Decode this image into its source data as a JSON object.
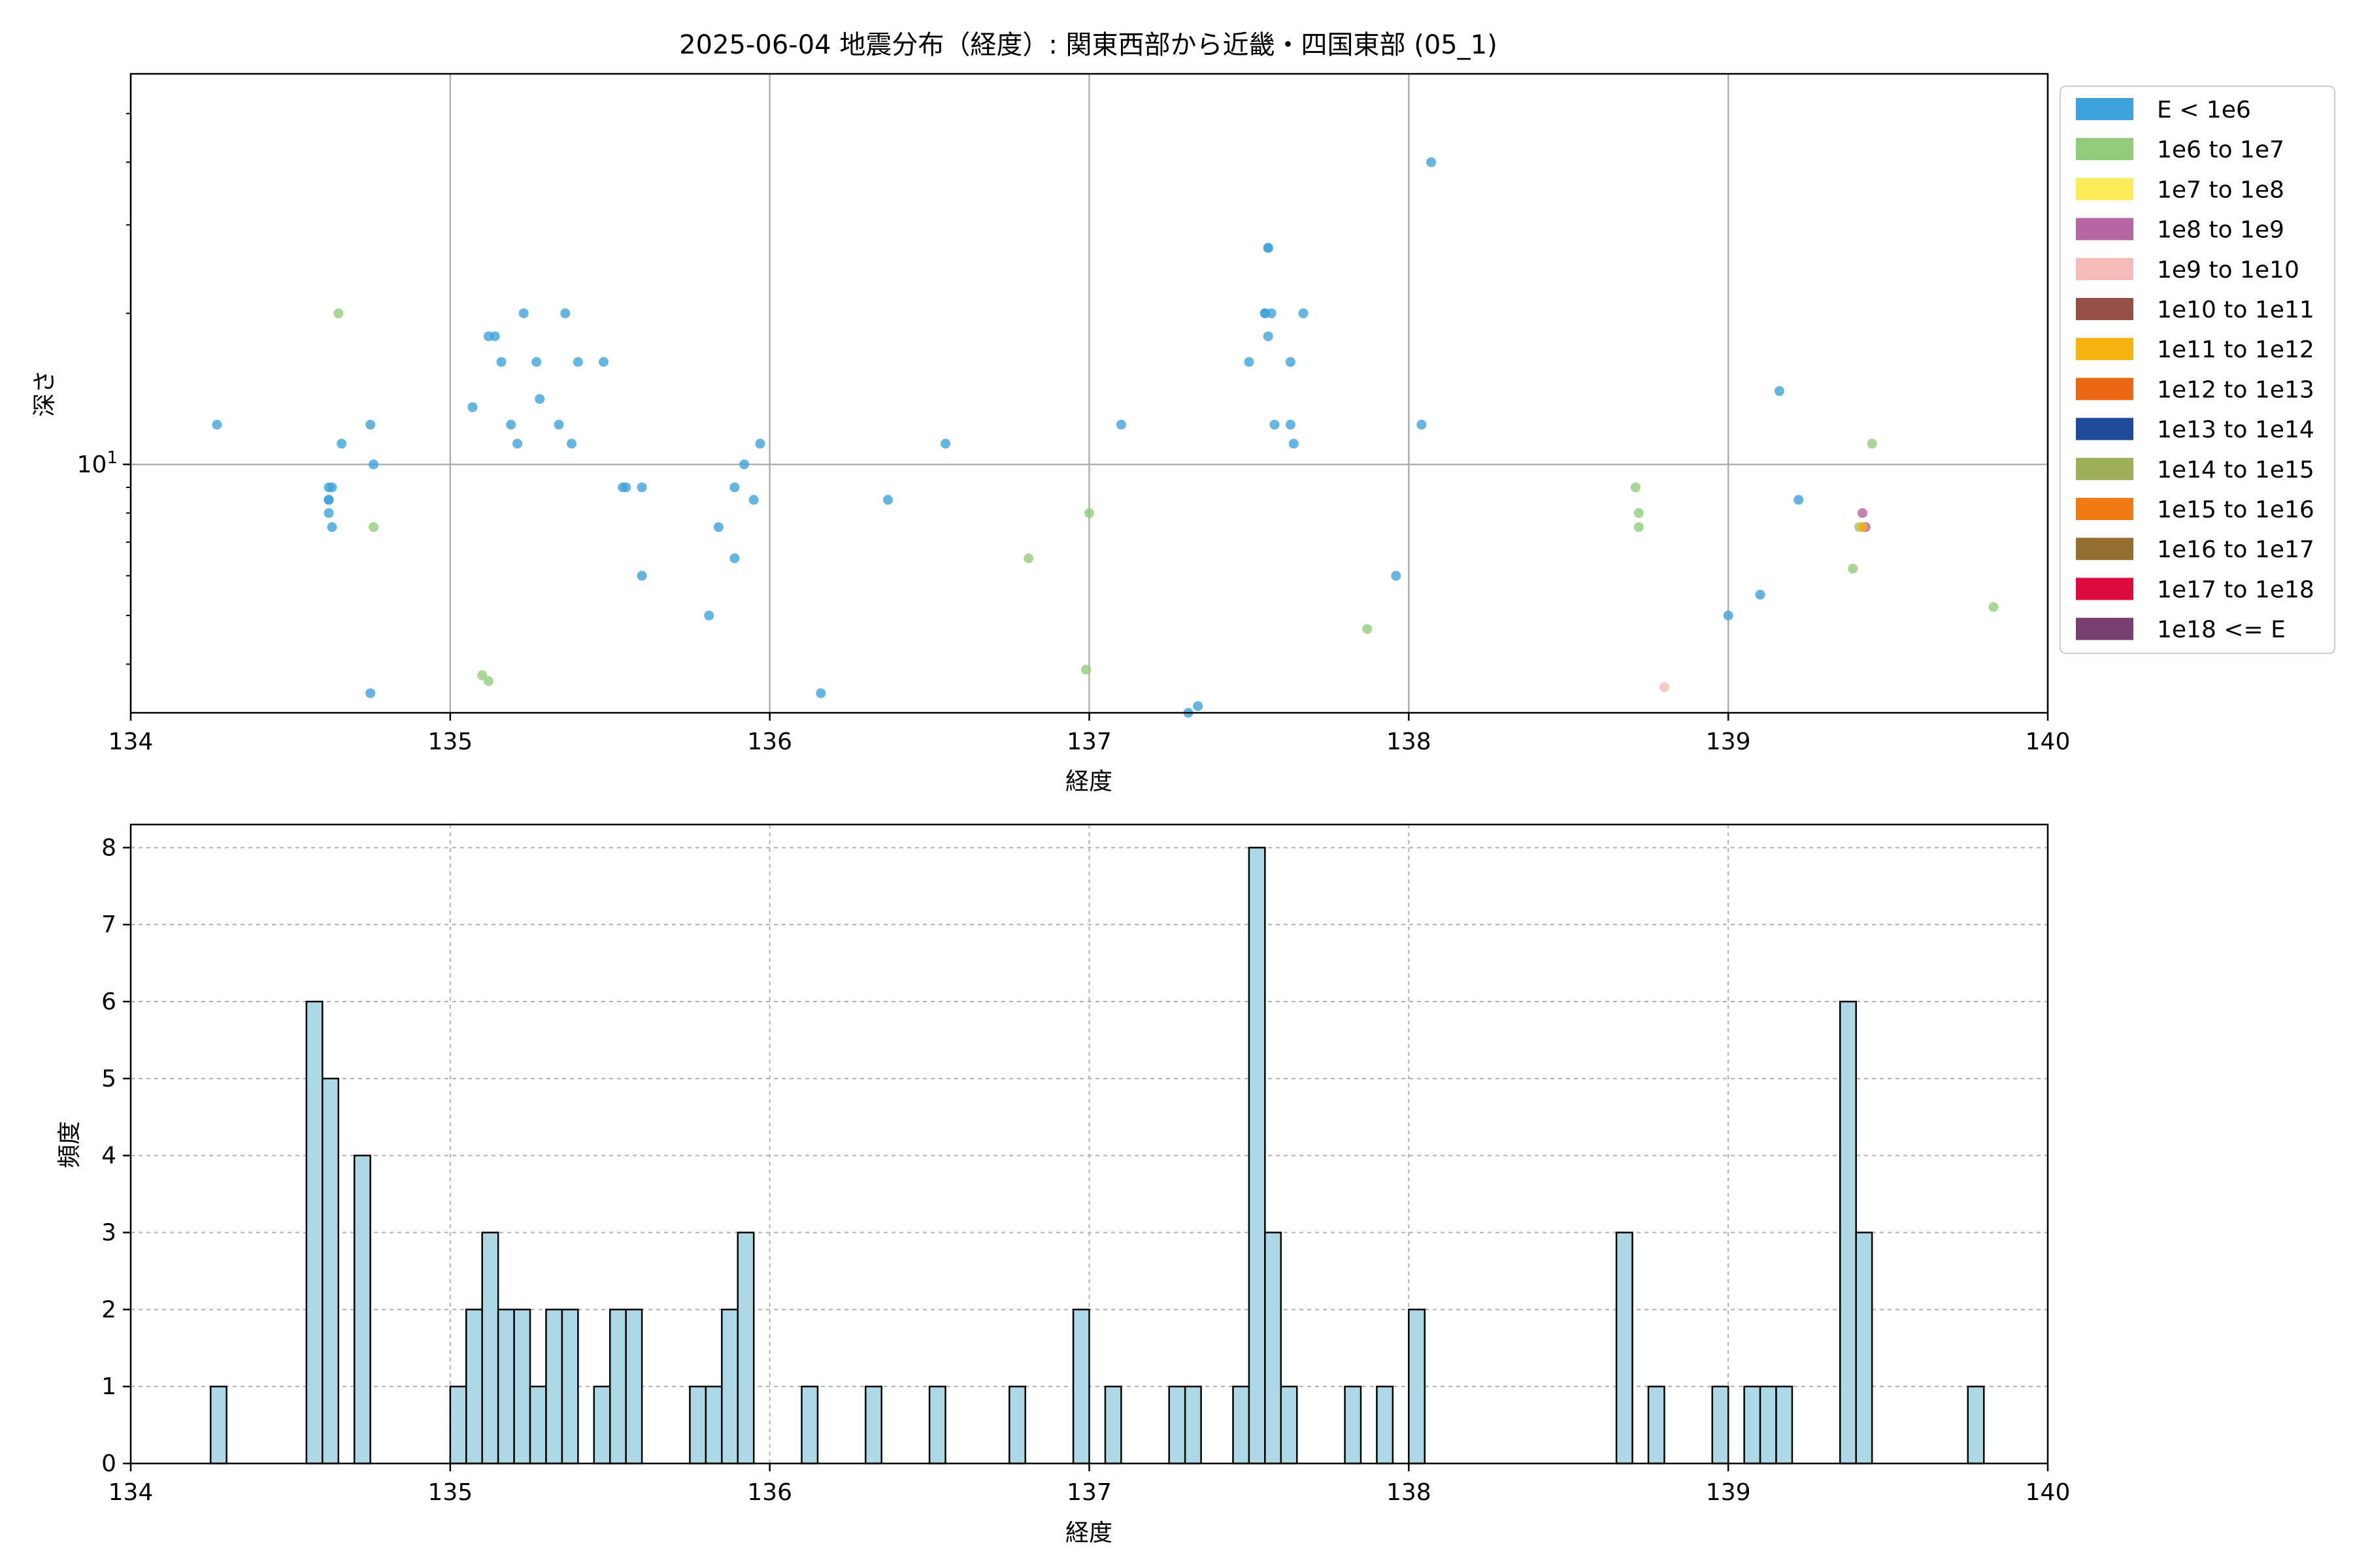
{
  "title": "2025-06-04 地震分布（経度）: 関東西部から近畿・四国東部 (05_1)",
  "scatter": {
    "xlabel": "経度",
    "ylabel": "深さ",
    "xlim": [
      134,
      140
    ],
    "ylim_log": [
      3.2,
      60
    ],
    "yscale": "log",
    "grid": true,
    "xticks": [
      "134",
      "135",
      "136",
      "137",
      "138",
      "139",
      "140"
    ],
    "y_major_tick": {
      "value": 10,
      "base": "10",
      "exp": "1"
    },
    "legend": {
      "placement": "outside-right",
      "entries": [
        {
          "label": "E < 1e6",
          "color": "#3fa3db"
        },
        {
          "label": "1e6 to 1e7",
          "color": "#93cc79"
        },
        {
          "label": "1e7 to 1e8",
          "color": "#fdeb5a"
        },
        {
          "label": "1e8 to 1e9",
          "color": "#b665a3"
        },
        {
          "label": "1e9 to 1e10",
          "color": "#f6bbb6"
        },
        {
          "label": "1e10 to 1e11",
          "color": "#965049"
        },
        {
          "label": "1e11 to 1e12",
          "color": "#f6b20f"
        },
        {
          "label": "1e12 to 1e13",
          "color": "#ea6611"
        },
        {
          "label": "1e13 to 1e14",
          "color": "#1c4b96"
        },
        {
          "label": "1e14 to 1e15",
          "color": "#9caf57"
        },
        {
          "label": "1e15 to 1e16",
          "color": "#ee7c12"
        },
        {
          "label": "1e16 to 1e17",
          "color": "#946e2e"
        },
        {
          "label": "1e17 to 1e18",
          "color": "#dd0a3e"
        },
        {
          "label": "1e18 <= E",
          "color": "#793f6f"
        }
      ]
    }
  },
  "histogram": {
    "xlabel": "経度",
    "ylabel": "頻度",
    "xlim": [
      134,
      140
    ],
    "ylim": [
      0,
      8.3
    ],
    "xticks": [
      "134",
      "135",
      "136",
      "137",
      "138",
      "139",
      "140"
    ],
    "yticks": [
      "0",
      "1",
      "2",
      "3",
      "4",
      "5",
      "6",
      "7",
      "8"
    ],
    "bar_color": "#add8e6",
    "edge_color": "#000000",
    "grid": "dashed"
  },
  "chart_data": [
    {
      "type": "scatter",
      "xlabel": "経度",
      "ylabel": "深さ",
      "xlim": [
        134,
        140
      ],
      "yscale": "log",
      "series": [
        {
          "name": "E < 1e6",
          "color": "#3fa3db",
          "points": [
            [
              134.27,
              12
            ],
            [
              134.62,
              9
            ],
            [
              134.62,
              8.5
            ],
            [
              134.62,
              8.5
            ],
            [
              134.62,
              8
            ],
            [
              134.63,
              7.5
            ],
            [
              134.63,
              9
            ],
            [
              134.66,
              11
            ],
            [
              134.75,
              12
            ],
            [
              134.76,
              10
            ],
            [
              134.75,
              3.5
            ],
            [
              135.07,
              13
            ],
            [
              135.12,
              18
            ],
            [
              135.14,
              18
            ],
            [
              135.16,
              16
            ],
            [
              135.19,
              12
            ],
            [
              135.21,
              11
            ],
            [
              135.23,
              20
            ],
            [
              135.27,
              16
            ],
            [
              135.28,
              13.5
            ],
            [
              135.34,
              12
            ],
            [
              135.36,
              20
            ],
            [
              135.38,
              11
            ],
            [
              135.4,
              16
            ],
            [
              135.48,
              16
            ],
            [
              135.54,
              9
            ],
            [
              135.55,
              9
            ],
            [
              135.6,
              9
            ],
            [
              135.6,
              6
            ],
            [
              135.81,
              5
            ],
            [
              135.84,
              7.5
            ],
            [
              135.89,
              9
            ],
            [
              135.89,
              6.5
            ],
            [
              135.92,
              10
            ],
            [
              135.95,
              8.5
            ],
            [
              135.97,
              11
            ],
            [
              136.16,
              3.5
            ],
            [
              136.37,
              8.5
            ],
            [
              136.55,
              11
            ],
            [
              137.1,
              12
            ],
            [
              137.31,
              3.2
            ],
            [
              137.34,
              3.3
            ],
            [
              137.5,
              16
            ],
            [
              137.55,
              20
            ],
            [
              137.55,
              20
            ],
            [
              137.56,
              27
            ],
            [
              137.56,
              27
            ],
            [
              137.56,
              18
            ],
            [
              137.57,
              20
            ],
            [
              137.58,
              12
            ],
            [
              137.63,
              16
            ],
            [
              137.63,
              12
            ],
            [
              137.64,
              11
            ],
            [
              137.67,
              20
            ],
            [
              137.96,
              6
            ],
            [
              138.04,
              12
            ],
            [
              138.07,
              40
            ],
            [
              139.0,
              5
            ],
            [
              139.1,
              5.5
            ],
            [
              139.16,
              14
            ],
            [
              139.22,
              8.5
            ]
          ]
        },
        {
          "name": "1e6 to 1e7",
          "color": "#93cc79",
          "points": [
            [
              134.65,
              20
            ],
            [
              134.76,
              7.5
            ],
            [
              135.1,
              3.8
            ],
            [
              135.12,
              3.7
            ],
            [
              136.81,
              6.5
            ],
            [
              136.99,
              3.9
            ],
            [
              137.0,
              8
            ],
            [
              137.87,
              4.7
            ],
            [
              138.71,
              9
            ],
            [
              138.72,
              8
            ],
            [
              138.72,
              7.5
            ],
            [
              139.39,
              6.2
            ],
            [
              139.41,
              7.5
            ],
            [
              139.45,
              11
            ],
            [
              139.83,
              5.2
            ]
          ]
        },
        {
          "name": "1e8 to 1e9",
          "color": "#b665a3",
          "points": [
            [
              139.42,
              8
            ],
            [
              139.43,
              7.5
            ]
          ]
        },
        {
          "name": "1e9 to 1e10",
          "color": "#f6bbb6",
          "points": [
            [
              138.8,
              3.6
            ]
          ]
        },
        {
          "name": "1e11 to 1e12",
          "color": "#f6b20f",
          "points": [
            [
              139.42,
              7.5
            ]
          ]
        }
      ]
    },
    {
      "type": "bar",
      "xlabel": "経度",
      "ylabel": "頻度",
      "xlim": [
        134,
        140
      ],
      "ylim": [
        0,
        8.3
      ],
      "bin_width": 0.05,
      "bars": [
        [
          134.275,
          1
        ],
        [
          134.575,
          6
        ],
        [
          134.625,
          5
        ],
        [
          134.725,
          4
        ],
        [
          135.025,
          1
        ],
        [
          135.075,
          2
        ],
        [
          135.125,
          3
        ],
        [
          135.175,
          2
        ],
        [
          135.225,
          2
        ],
        [
          135.275,
          1
        ],
        [
          135.325,
          2
        ],
        [
          135.375,
          2
        ],
        [
          135.475,
          1
        ],
        [
          135.525,
          2
        ],
        [
          135.575,
          2
        ],
        [
          135.775,
          1
        ],
        [
          135.825,
          1
        ],
        [
          135.875,
          2
        ],
        [
          135.925,
          3
        ],
        [
          136.125,
          1
        ],
        [
          136.325,
          1
        ],
        [
          136.525,
          1
        ],
        [
          136.775,
          1
        ],
        [
          136.975,
          2
        ],
        [
          137.075,
          1
        ],
        [
          137.275,
          1
        ],
        [
          137.325,
          1
        ],
        [
          137.475,
          1
        ],
        [
          137.525,
          8
        ],
        [
          137.575,
          3
        ],
        [
          137.625,
          1
        ],
        [
          137.825,
          1
        ],
        [
          137.925,
          1
        ],
        [
          138.025,
          2
        ],
        [
          138.675,
          3
        ],
        [
          138.775,
          1
        ],
        [
          138.975,
          1
        ],
        [
          139.075,
          1
        ],
        [
          139.125,
          1
        ],
        [
          139.175,
          1
        ],
        [
          139.375,
          6
        ],
        [
          139.425,
          3
        ],
        [
          139.775,
          1
        ]
      ]
    }
  ]
}
